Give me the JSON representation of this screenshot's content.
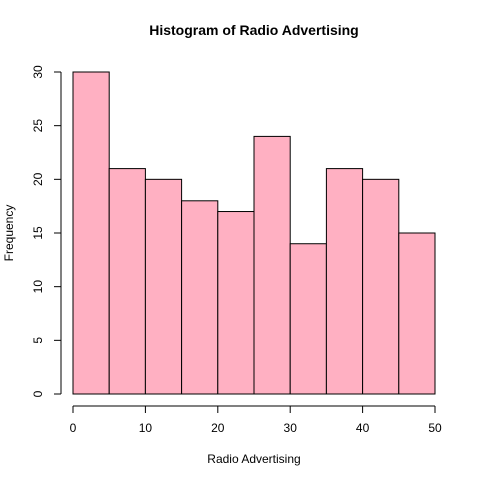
{
  "chart_data": {
    "type": "bar",
    "title": "Histogram of Radio Advertising",
    "xlabel": "Radio Advertising",
    "ylabel": "Frequency",
    "bins": [
      [
        0,
        5
      ],
      [
        5,
        10
      ],
      [
        10,
        15
      ],
      [
        15,
        20
      ],
      [
        20,
        25
      ],
      [
        25,
        30
      ],
      [
        30,
        35
      ],
      [
        35,
        40
      ],
      [
        40,
        45
      ],
      [
        45,
        50
      ]
    ],
    "values": [
      30,
      21,
      20,
      18,
      17,
      24,
      14,
      21,
      20,
      15
    ],
    "xlim": [
      0,
      50
    ],
    "ylim": [
      0,
      30
    ],
    "xticks": [
      0,
      10,
      20,
      30,
      40,
      50
    ],
    "yticks": [
      0,
      5,
      10,
      15,
      20,
      25,
      30
    ],
    "bar_color": "#FFB0C2",
    "grid": false
  }
}
